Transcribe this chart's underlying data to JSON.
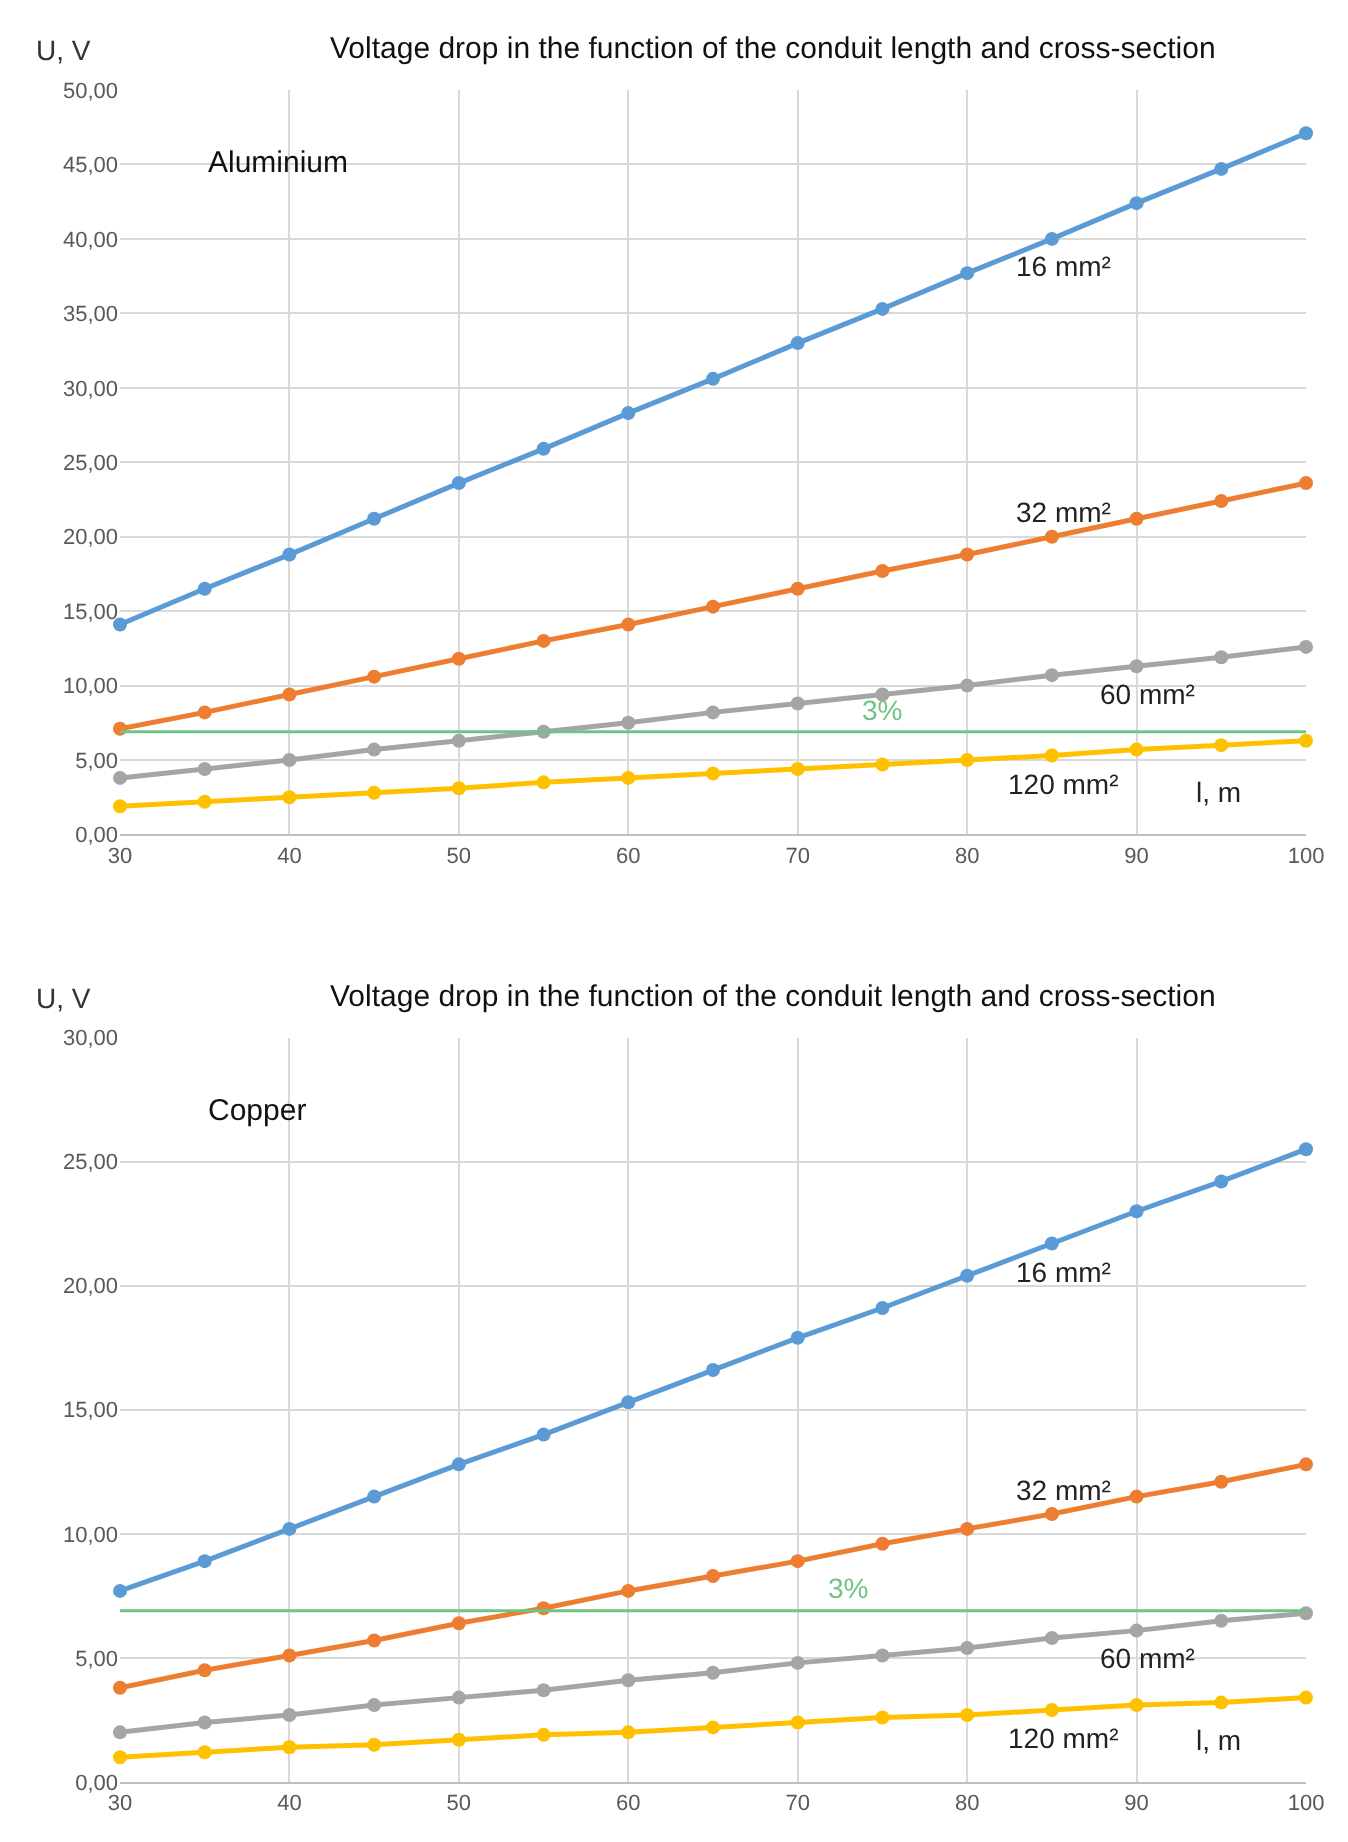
{
  "chart_data": [
    {
      "type": "line",
      "title": "Voltage drop in the function of the conduit length and cross-section",
      "xlabel": "l, m",
      "ylabel": "U, V",
      "annotations": [
        "Aluminium",
        {
          "text": "3%",
          "x": 75,
          "y": 6.9
        }
      ],
      "x": [
        30,
        35,
        40,
        45,
        50,
        55,
        60,
        65,
        70,
        75,
        80,
        85,
        90,
        95,
        100
      ],
      "series": [
        {
          "name": "16 mm²",
          "color": "#5b9bd5",
          "values": [
            14.1,
            16.5,
            18.8,
            21.2,
            23.6,
            25.9,
            28.3,
            30.6,
            33.0,
            35.3,
            37.7,
            40.0,
            42.4,
            44.7,
            47.1
          ]
        },
        {
          "name": "32 mm²",
          "color": "#ed7d31",
          "values": [
            7.1,
            8.2,
            9.4,
            10.6,
            11.8,
            13.0,
            14.1,
            15.3,
            16.5,
            17.7,
            18.8,
            20.0,
            21.2,
            22.4,
            23.6
          ]
        },
        {
          "name": "60 mm²",
          "color": "#a5a5a5",
          "values": [
            3.8,
            4.4,
            5.0,
            5.7,
            6.3,
            6.9,
            7.5,
            8.2,
            8.8,
            9.4,
            10.0,
            10.7,
            11.3,
            11.9,
            12.6
          ]
        },
        {
          "name": "120 mm²",
          "color": "#ffc000",
          "values": [
            1.9,
            2.2,
            2.5,
            2.8,
            3.1,
            3.5,
            3.8,
            4.1,
            4.4,
            4.7,
            5.0,
            5.3,
            5.7,
            6.0,
            6.3
          ]
        }
      ],
      "ref_lines": [
        {
          "axis": "y",
          "value": 6.9,
          "color": "#70c483"
        }
      ],
      "xlim": [
        30,
        100
      ],
      "xticks": [
        30,
        40,
        50,
        60,
        70,
        80,
        90,
        100
      ],
      "ylim": [
        0,
        50
      ],
      "yticks": [
        {
          "value": 0,
          "label": "0,00"
        },
        {
          "value": 5,
          "label": "5,00"
        },
        {
          "value": 10,
          "label": "10,00"
        },
        {
          "value": 15,
          "label": "15,00"
        },
        {
          "value": 20,
          "label": "20,00"
        },
        {
          "value": 25,
          "label": "25,00"
        },
        {
          "value": 30,
          "label": "30,00"
        },
        {
          "value": 35,
          "label": "35,00"
        },
        {
          "value": 40,
          "label": "40,00"
        },
        {
          "value": 45,
          "label": "45,00"
        },
        {
          "value": 50,
          "label": "50,00"
        }
      ],
      "grid": true,
      "legend": false,
      "marker": "circle",
      "line_style": "solid"
    },
    {
      "type": "line",
      "title": "Voltage drop in the function of the conduit length and cross-section",
      "xlabel": "l, m",
      "ylabel": "U, V",
      "annotations": [
        "Copper",
        {
          "text": "3%",
          "x": 73,
          "y": 6.9
        }
      ],
      "x": [
        30,
        35,
        40,
        45,
        50,
        55,
        60,
        65,
        70,
        75,
        80,
        85,
        90,
        95,
        100
      ],
      "series": [
        {
          "name": "16 mm²",
          "color": "#5b9bd5",
          "values": [
            7.7,
            8.9,
            10.2,
            11.5,
            12.8,
            14.0,
            15.3,
            16.6,
            17.9,
            19.1,
            20.4,
            21.7,
            23.0,
            24.2,
            25.5
          ]
        },
        {
          "name": "32 mm²",
          "color": "#ed7d31",
          "values": [
            3.8,
            4.5,
            5.1,
            5.7,
            6.4,
            7.0,
            7.7,
            8.3,
            8.9,
            9.6,
            10.2,
            10.8,
            11.5,
            12.1,
            12.8
          ]
        },
        {
          "name": "60 mm²",
          "color": "#a5a5a5",
          "values": [
            2.0,
            2.4,
            2.7,
            3.1,
            3.4,
            3.7,
            4.1,
            4.4,
            4.8,
            5.1,
            5.4,
            5.8,
            6.1,
            6.5,
            6.8
          ]
        },
        {
          "name": "120 mm²",
          "color": "#ffc000",
          "values": [
            1.0,
            1.2,
            1.4,
            1.5,
            1.7,
            1.9,
            2.0,
            2.2,
            2.4,
            2.6,
            2.7,
            2.9,
            3.1,
            3.2,
            3.4
          ]
        }
      ],
      "ref_lines": [
        {
          "axis": "y",
          "value": 6.9,
          "color": "#70c483"
        }
      ],
      "xlim": [
        30,
        100
      ],
      "xticks": [
        30,
        40,
        50,
        60,
        70,
        80,
        90,
        100
      ],
      "ylim": [
        0,
        30
      ],
      "yticks": [
        {
          "value": 0,
          "label": "0,00"
        },
        {
          "value": 5,
          "label": "5,00"
        },
        {
          "value": 10,
          "label": "10,00"
        },
        {
          "value": 15,
          "label": "15,00"
        },
        {
          "value": 20,
          "label": "20,00"
        },
        {
          "value": 25,
          "label": "25,00"
        },
        {
          "value": 30,
          "label": "30,00"
        }
      ],
      "grid": true,
      "legend": false,
      "marker": "circle",
      "line_style": "solid"
    }
  ]
}
